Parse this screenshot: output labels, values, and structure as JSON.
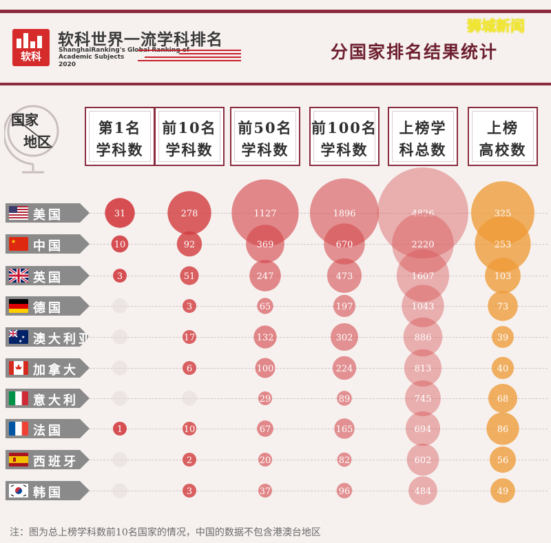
{
  "header": {
    "brand_title": "软科世界一流学科排名",
    "brand_subtitle_1": "ShanghaiRanking's Global Ranking of",
    "brand_subtitle_2": "Academic Subjects",
    "brand_year": "2020",
    "logo_text": "软科",
    "page_title": "分国家排名结果统计",
    "watermark": "狮城新闻"
  },
  "corner_label": {
    "l1": "国家",
    "l2": "地区"
  },
  "columns": [
    {
      "l1": "第1名",
      "l2": "学科数"
    },
    {
      "l1": "前10名",
      "l2": "学科数"
    },
    {
      "l1": "前50名",
      "l2": "学科数"
    },
    {
      "l1": "前100名",
      "l2": "学科数"
    },
    {
      "l1": "上榜学",
      "l2": "科总数"
    },
    {
      "l1": "上榜",
      "l2": "高校数"
    }
  ],
  "countries": [
    {
      "name": "美国",
      "flag": "us-flag-icon"
    },
    {
      "name": "中国",
      "flag": "china-flag-icon"
    },
    {
      "name": "英国",
      "flag": "uk-flag-icon"
    },
    {
      "name": "德国",
      "flag": "germany-flag-icon"
    },
    {
      "name": "澳大利亚",
      "flag": "australia-flag-icon"
    },
    {
      "name": "加拿大",
      "flag": "canada-flag-icon"
    },
    {
      "name": "意大利",
      "flag": "italy-flag-icon"
    },
    {
      "name": "法国",
      "flag": "france-flag-icon"
    },
    {
      "name": "西班牙",
      "flag": "spain-flag-icon"
    },
    {
      "name": "韩国",
      "flag": "korea-flag-icon"
    }
  ],
  "chart_data": {
    "type": "bubble-matrix",
    "categories": [
      "美国",
      "中国",
      "英国",
      "德国",
      "澳大利亚",
      "加拿大",
      "意大利",
      "法国",
      "西班牙",
      "韩国"
    ],
    "series": [
      {
        "name": "第1名学科数",
        "values": [
          31,
          10,
          3,
          0,
          0,
          0,
          0,
          1,
          0,
          0
        ]
      },
      {
        "name": "前10名学科数",
        "values": [
          278,
          92,
          51,
          3,
          17,
          6,
          0,
          10,
          2,
          3
        ]
      },
      {
        "name": "前50名学科数",
        "values": [
          1127,
          369,
          247,
          65,
          132,
          100,
          29,
          67,
          20,
          37
        ]
      },
      {
        "name": "前100名学科数",
        "values": [
          1896,
          670,
          473,
          197,
          302,
          224,
          89,
          165,
          82,
          96
        ]
      },
      {
        "name": "上榜学科总数",
        "values": [
          4826,
          2220,
          1607,
          1043,
          886,
          813,
          745,
          694,
          602,
          484
        ]
      },
      {
        "name": "上榜高校数",
        "values": [
          325,
          253,
          103,
          73,
          39,
          40,
          68,
          86,
          56,
          49
        ]
      }
    ],
    "colors": {
      "red": "#d23f45",
      "orange": "#eea23a",
      "ghost": "#e5dada"
    }
  },
  "footnote": "注：图为总上榜学科数前10名国家的情况，中国的数据不包含港澳台地区"
}
